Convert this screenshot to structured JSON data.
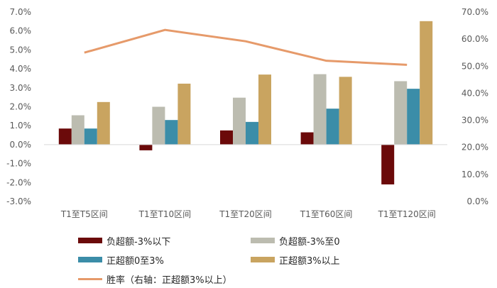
{
  "chart_data": {
    "type": "bar",
    "categories": [
      "T1至T5区间",
      "T1至T10区间",
      "T1至T20区间",
      "T1至T60区间",
      "T1至T120区间"
    ],
    "series": [
      {
        "name": "负超额-3%以下",
        "type": "bar",
        "axis": "left",
        "color": "#6b0a0a",
        "values": [
          0.85,
          -0.3,
          0.75,
          0.65,
          -2.1
        ]
      },
      {
        "name": "负超额-3%至0",
        "type": "bar",
        "axis": "left",
        "color": "#bcbcb0",
        "values": [
          1.55,
          2.0,
          2.48,
          3.72,
          3.35
        ]
      },
      {
        "name": "正超额0至3%",
        "type": "bar",
        "axis": "left",
        "color": "#3b8da8",
        "values": [
          0.85,
          1.3,
          1.2,
          1.9,
          2.95
        ]
      },
      {
        "name": "正超额3%以上",
        "type": "bar",
        "axis": "left",
        "color": "#c9a460",
        "values": [
          2.25,
          3.22,
          3.7,
          3.58,
          6.52
        ]
      },
      {
        "name": "胜率（右轴：正超额3%以上）",
        "type": "line",
        "axis": "right",
        "color": "#e69a6a",
        "values": [
          55.0,
          63.4,
          59.2,
          52.0,
          50.5
        ]
      }
    ],
    "y_left": {
      "min": -3.0,
      "max": 7.0,
      "step": 1.0,
      "tick_labels": [
        "-3.0%",
        "-2.0%",
        "-1.0%",
        "0.0%",
        "1.0%",
        "2.0%",
        "3.0%",
        "4.0%",
        "5.0%",
        "6.0%",
        "7.0%"
      ]
    },
    "y_right": {
      "min": 0.0,
      "max": 70.0,
      "step": 10.0,
      "tick_labels": [
        "0.0%",
        "10.0%",
        "20.0%",
        "30.0%",
        "40.0%",
        "50.0%",
        "60.0%",
        "70.0%"
      ]
    },
    "title": "",
    "xlabel": "",
    "grid": false,
    "legend_position": "bottom"
  }
}
